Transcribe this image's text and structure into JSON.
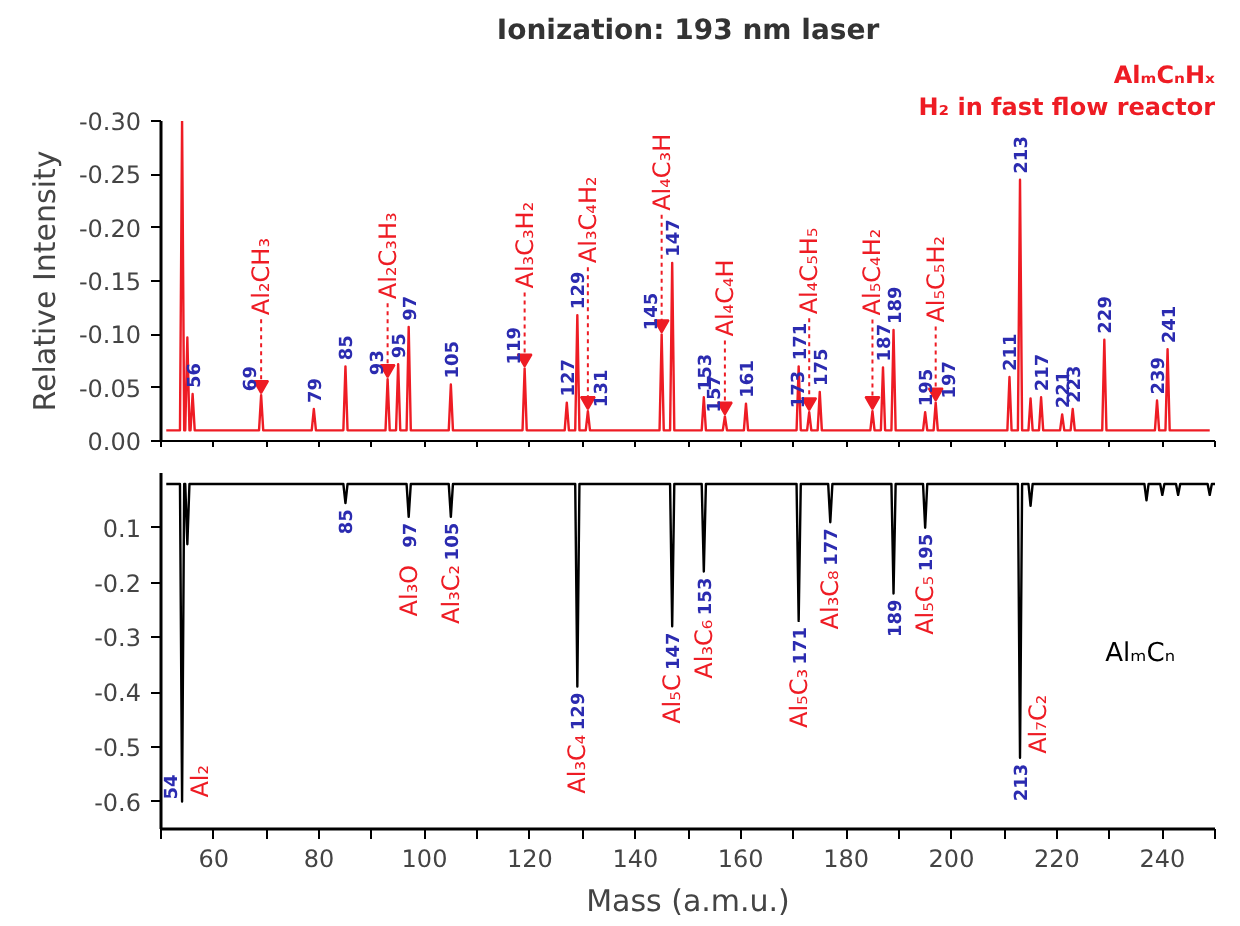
{
  "chart_data": [
    {
      "type": "line",
      "title": "Ionization: 193 nm laser",
      "ylabel": "Relative Intensity",
      "xlim": [
        50,
        250
      ],
      "ylim": [
        0,
        -0.3
      ],
      "xticks": [
        {
          "value": 50,
          "label": null
        },
        60,
        {
          "value": 70,
          "label": null
        },
        80,
        {
          "value": 90,
          "label": null
        },
        100,
        {
          "value": 110,
          "label": null
        },
        120,
        {
          "value": 130,
          "label": null
        },
        140,
        {
          "value": 150,
          "label": null
        },
        160,
        {
          "value": 170,
          "label": null
        },
        180,
        {
          "value": 190,
          "label": null
        },
        200,
        {
          "value": 210,
          "label": null
        },
        220,
        {
          "value": 230,
          "label": null
        },
        240,
        {
          "value": 250,
          "label": null
        }
      ],
      "yticks": [
        {
          "value": -0.3,
          "label": "-0.30"
        },
        {
          "value": -0.25,
          "label": "-0.25"
        },
        {
          "value": -0.2,
          "label": "-0.20"
        },
        {
          "value": -0.15,
          "label": "-0.15"
        },
        {
          "value": -0.1,
          "label": "-0.10"
        },
        {
          "value": -0.05,
          "label": "-0.05"
        },
        {
          "value": 0,
          "label": "0.00"
        }
      ],
      "tick_labels": "y",
      "annotations": [
        "AlₘCₙHₓ",
        "H₂ in fast flow reactor",
        {
          "text": "Al₂CH₃",
          "x": 69,
          "y": -0.043
        },
        {
          "text": "Al₂C₃H₃",
          "x": 93,
          "y": -0.058
        },
        {
          "text": "Al₃C₃H₂",
          "x": 119,
          "y": -0.068
        },
        {
          "text": "Al₃C₄H₂",
          "x": 131,
          "y": -0.028
        },
        {
          "text": "Al₄C₃H",
          "x": 145,
          "y": -0.1
        },
        {
          "text": "Al₄C₄H",
          "x": 157,
          "y": -0.023
        },
        {
          "text": "Al₄C₅H₅",
          "x": 173,
          "y": -0.027
        },
        {
          "text": "Al₅C₄H₂",
          "x": 185,
          "y": -0.028
        },
        {
          "text": "Al₅C₅H₂",
          "x": 197,
          "y": -0.036
        },
        {
          "text": "56",
          "x": 56,
          "y": -0.044
        },
        {
          "text": "69",
          "x": 69,
          "y": -0.043
        },
        {
          "text": "79",
          "x": 79,
          "y": -0.03
        },
        {
          "text": "85",
          "x": 85,
          "y": -0.07
        },
        {
          "text": "93",
          "x": 93,
          "y": -0.058
        },
        {
          "text": "95",
          "x": 95,
          "y": -0.072
        },
        {
          "text": "97",
          "x": 97,
          "y": -0.107
        },
        {
          "text": "105",
          "x": 105,
          "y": -0.053
        },
        {
          "text": "119",
          "x": 119,
          "y": -0.068
        },
        {
          "text": "127",
          "x": 127,
          "y": -0.036
        },
        {
          "text": "129",
          "x": 129,
          "y": -0.118
        },
        {
          "text": "131",
          "x": 131,
          "y": -0.028
        },
        {
          "text": "145",
          "x": 145,
          "y": -0.1
        },
        {
          "text": "147",
          "x": 147,
          "y": -0.167
        },
        {
          "text": "153",
          "x": 153,
          "y": -0.041
        },
        {
          "text": "157",
          "x": 157,
          "y": -0.023
        },
        {
          "text": "161",
          "x": 161,
          "y": -0.035
        },
        {
          "text": "171",
          "x": 171,
          "y": -0.07
        },
        {
          "text": "173",
          "x": 173,
          "y": -0.027
        },
        {
          "text": "175",
          "x": 175,
          "y": -0.046
        },
        {
          "text": "187",
          "x": 187,
          "y": -0.069
        },
        {
          "text": "189",
          "x": 189,
          "y": -0.104
        },
        {
          "text": "195",
          "x": 195,
          "y": -0.027
        },
        {
          "text": "197",
          "x": 197,
          "y": -0.036
        },
        {
          "text": "211",
          "x": 211,
          "y": -0.06
        },
        {
          "text": "213",
          "x": 213,
          "y": -0.245
        },
        {
          "text": "217",
          "x": 217,
          "y": -0.041
        },
        {
          "text": "221",
          "x": 221,
          "y": -0.025
        },
        {
          "text": "223",
          "x": 223,
          "y": -0.03
        },
        {
          "text": "229",
          "x": 229,
          "y": -0.095
        },
        {
          "text": "239",
          "x": 239,
          "y": -0.038
        },
        {
          "text": "241",
          "x": 241,
          "y": -0.086
        }
      ],
      "series": [
        {
          "color": "#ee1c24",
          "x": [
            51,
            53.6,
            54,
            54.4,
            54.6,
            55,
            55.4,
            55.6,
            56,
            56.4,
            68.6,
            69,
            69.4,
            78.6,
            79,
            79.4,
            84.6,
            85,
            85.4,
            92.6,
            93,
            93.4,
            94.6,
            95,
            95.4,
            96.6,
            97,
            97.4,
            104.6,
            105,
            105.4,
            118.6,
            119,
            119.4,
            126.6,
            127,
            127.4,
            128.6,
            129,
            129.4,
            130.6,
            131,
            131.4,
            144.6,
            145,
            145.4,
            146.6,
            147,
            147.4,
            152.6,
            153,
            153.4,
            156.6,
            157,
            157.4,
            160.6,
            161,
            161.4,
            170.6,
            171,
            171.4,
            172.6,
            173,
            173.4,
            174.6,
            175,
            175.4,
            184.6,
            185,
            185.4,
            186.6,
            187,
            187.4,
            188.6,
            189,
            189.4,
            194.6,
            195,
            195.4,
            196.6,
            197,
            197.4,
            210.6,
            211,
            211.4,
            212.6,
            213,
            213.4,
            214.6,
            215,
            215.4,
            216.6,
            217,
            217.4,
            220.6,
            221,
            221.4,
            222.6,
            223,
            223.4,
            228.6,
            229,
            229.4,
            238.6,
            239,
            239.4,
            240.6,
            241,
            241.4,
            249
          ],
          "values": [
            -0.01,
            -0.01,
            -0.3,
            -0.01,
            -0.01,
            -0.097,
            -0.01,
            -0.01,
            -0.044,
            -0.01,
            -0.01,
            -0.043,
            -0.01,
            -0.01,
            -0.03,
            -0.01,
            -0.01,
            -0.07,
            -0.01,
            -0.01,
            -0.058,
            -0.01,
            -0.01,
            -0.072,
            -0.01,
            -0.01,
            -0.107,
            -0.01,
            -0.01,
            -0.053,
            -0.01,
            -0.01,
            -0.068,
            -0.01,
            -0.01,
            -0.036,
            -0.01,
            -0.01,
            -0.118,
            -0.01,
            -0.01,
            -0.028,
            -0.01,
            -0.01,
            -0.1,
            -0.01,
            -0.01,
            -0.167,
            -0.01,
            -0.01,
            -0.041,
            -0.01,
            -0.01,
            -0.023,
            -0.01,
            -0.01,
            -0.035,
            -0.01,
            -0.01,
            -0.07,
            -0.01,
            -0.01,
            -0.027,
            -0.01,
            -0.01,
            -0.046,
            -0.01,
            -0.01,
            -0.028,
            -0.01,
            -0.01,
            -0.069,
            -0.01,
            -0.01,
            -0.104,
            -0.01,
            -0.01,
            -0.027,
            -0.01,
            -0.01,
            -0.036,
            -0.01,
            -0.01,
            -0.06,
            -0.01,
            -0.01,
            -0.245,
            -0.01,
            -0.01,
            -0.04,
            -0.01,
            -0.01,
            -0.041,
            -0.01,
            -0.01,
            -0.025,
            -0.01,
            -0.01,
            -0.03,
            -0.01,
            -0.01,
            -0.095,
            -0.01,
            -0.01,
            -0.038,
            -0.01,
            -0.01,
            -0.086,
            -0.01,
            -0.01
          ]
        }
      ]
    },
    {
      "type": "line",
      "xlabel": "Mass (a.m.u.)",
      "xlim": [
        50,
        250
      ],
      "ylim": [
        -0.65,
        0
      ],
      "xticks": [
        {
          "value": 50,
          "label": null
        },
        60,
        {
          "value": 70,
          "label": null
        },
        80,
        {
          "value": 90,
          "label": null
        },
        100,
        {
          "value": 110,
          "label": null
        },
        120,
        {
          "value": 130,
          "label": null
        },
        140,
        {
          "value": 150,
          "label": null
        },
        160,
        {
          "value": 170,
          "label": null
        },
        180,
        {
          "value": 190,
          "label": null
        },
        200,
        {
          "value": 210,
          "label": null
        },
        220,
        {
          "value": 230,
          "label": null
        },
        240,
        {
          "value": 250,
          "label": null
        }
      ],
      "yticks": [
        {
          "value": -0.1,
          "label": "0.1"
        },
        -0.2,
        -0.3,
        -0.4,
        -0.5,
        -0.6
      ],
      "annotations": [
        "AlₘCₙ",
        {
          "text": "Al₂",
          "x": 54,
          "y": -0.6
        },
        {
          "text": "Al₃O",
          "x": 97,
          "y": -0.08
        },
        {
          "text": "Al₃C₂",
          "x": 105,
          "y": -0.08
        },
        {
          "text": "Al₃C₄",
          "x": 129,
          "y": -0.39
        },
        {
          "text": "Al₅C",
          "x": 147,
          "y": -0.28
        },
        {
          "text": "Al₃C₆",
          "x": 153,
          "y": -0.18
        },
        {
          "text": "Al₅C₃",
          "x": 171,
          "y": -0.27
        },
        {
          "text": "Al₃C₈",
          "x": 177,
          "y": -0.09
        },
        {
          "text": "Al₅C₅",
          "x": 195,
          "y": -0.1
        },
        {
          "text": "Al₇C₂",
          "x": 213,
          "y": -0.52
        },
        {
          "text": "54",
          "x": 54,
          "y": -0.6
        },
        {
          "text": "85",
          "x": 85,
          "y": -0.055
        },
        {
          "text": "97",
          "x": 97,
          "y": -0.08
        },
        {
          "text": "105",
          "x": 105,
          "y": -0.08
        },
        {
          "text": "129",
          "x": 129,
          "y": -0.39
        },
        {
          "text": "147",
          "x": 147,
          "y": -0.28
        },
        {
          "text": "153",
          "x": 153,
          "y": -0.18
        },
        {
          "text": "171",
          "x": 171,
          "y": -0.27
        },
        {
          "text": "177",
          "x": 177,
          "y": -0.09
        },
        {
          "text": "189",
          "x": 189,
          "y": -0.22
        },
        {
          "text": "195",
          "x": 195,
          "y": -0.1
        },
        {
          "text": "213",
          "x": 213,
          "y": -0.52
        }
      ],
      "series": [
        {
          "color": "#000000",
          "x": [
            51,
            53.6,
            54,
            54.4,
            54.6,
            55,
            55.4,
            84.6,
            85,
            85.4,
            96.6,
            97,
            97.4,
            104.6,
            105,
            105.4,
            128.6,
            129,
            129.4,
            146.6,
            147,
            147.4,
            152.6,
            153,
            153.4,
            170.6,
            171,
            171.4,
            176.6,
            177,
            177.4,
            188.6,
            189,
            189.4,
            194.6,
            195,
            195.4,
            212.6,
            213,
            213.4,
            214.6,
            215,
            215.4,
            236.6,
            237,
            237.4,
            239.6,
            240,
            240.4,
            242.6,
            243,
            243.4,
            248.6,
            249,
            249.4,
            250
          ],
          "values": [
            -0.02,
            -0.02,
            -0.6,
            -0.02,
            -0.02,
            -0.13,
            -0.02,
            -0.02,
            -0.055,
            -0.02,
            -0.02,
            -0.08,
            -0.02,
            -0.02,
            -0.08,
            -0.02,
            -0.02,
            -0.39,
            -0.02,
            -0.02,
            -0.28,
            -0.02,
            -0.02,
            -0.18,
            -0.02,
            -0.02,
            -0.27,
            -0.02,
            -0.02,
            -0.09,
            -0.02,
            -0.02,
            -0.22,
            -0.02,
            -0.02,
            -0.1,
            -0.02,
            -0.02,
            -0.52,
            -0.02,
            -0.02,
            -0.06,
            -0.02,
            -0.02,
            -0.05,
            -0.02,
            -0.02,
            -0.04,
            -0.02,
            -0.02,
            -0.04,
            -0.02,
            -0.02,
            -0.04,
            -0.02,
            -0.02
          ]
        }
      ]
    }
  ]
}
